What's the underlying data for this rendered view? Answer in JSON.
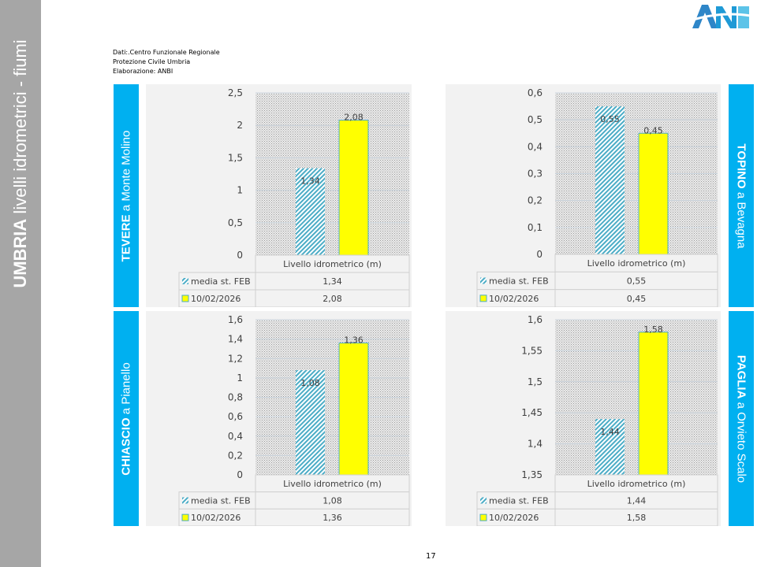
{
  "sidebar": {
    "title_bold": "UMBRIA",
    "title_rest": " livelli idrometrici - fiumi"
  },
  "logo": {
    "text": "ANBI"
  },
  "source": [
    "Dati:.Centro Funzionale Regionale",
    "Protezione Civile Umbria",
    "Elaborazione: ANBI"
  ],
  "page_number": "17",
  "colors": {
    "station_label": "#00b0f0",
    "series_media": "#4bacc6",
    "series_date": "#ffff00",
    "panel": "#f2f2f2"
  },
  "chart_data": [
    {
      "type": "bar",
      "station_bold": "TEVERE",
      "station_rest": " a Monte Molino",
      "side": "left",
      "category": "Livello idrometrico (m)",
      "ylim": [
        0,
        2.5
      ],
      "yticks": [
        "0",
        "0,5",
        "1",
        "1,5",
        "2",
        "2,5"
      ],
      "grid": true,
      "series": [
        {
          "name": "media st. FEB",
          "values": [
            1.34
          ],
          "labels": [
            "1,34"
          ]
        },
        {
          "name": "10/02/2026",
          "values": [
            2.08
          ],
          "labels": [
            "2,08"
          ]
        }
      ]
    },
    {
      "type": "bar",
      "station_bold": "TOPINO",
      "station_rest": " a Bevagna",
      "side": "right",
      "category": "Livello idrometrico (m)",
      "ylim": [
        0,
        0.6
      ],
      "yticks": [
        "0",
        "0,1",
        "0,2",
        "0,3",
        "0,4",
        "0,5",
        "0,6"
      ],
      "grid": true,
      "series": [
        {
          "name": "media st. FEB",
          "values": [
            0.55
          ],
          "labels": [
            "0,55"
          ]
        },
        {
          "name": "10/02/2026",
          "values": [
            0.45
          ],
          "labels": [
            "0,45"
          ]
        }
      ]
    },
    {
      "type": "bar",
      "station_bold": "CHIASCIO",
      "station_rest": " a Pianello",
      "side": "left",
      "category": "Livello idrometrico (m)",
      "ylim": [
        0,
        1.6
      ],
      "yticks": [
        "0",
        "0,2",
        "0,4",
        "0,6",
        "0,8",
        "1",
        "1,2",
        "1,4",
        "1,6"
      ],
      "grid": true,
      "series": [
        {
          "name": "media st. FEB",
          "values": [
            1.08
          ],
          "labels": [
            "1,08"
          ]
        },
        {
          "name": "10/02/2026",
          "values": [
            1.36
          ],
          "labels": [
            "1,36"
          ]
        }
      ]
    },
    {
      "type": "bar",
      "station_bold": "PAGLIA",
      "station_rest": " a Orvieto Scalo",
      "side": "right",
      "category": "Livello idrometrico (m)",
      "ylim": [
        1.35,
        1.6
      ],
      "yticks": [
        "1,35",
        "1,4",
        "1,45",
        "1,5",
        "1,55",
        "1,6"
      ],
      "grid": true,
      "series": [
        {
          "name": "media st. FEB",
          "values": [
            1.44
          ],
          "labels": [
            "1,44"
          ]
        },
        {
          "name": "10/02/2026",
          "values": [
            1.58
          ],
          "labels": [
            "1,58"
          ]
        }
      ]
    }
  ]
}
